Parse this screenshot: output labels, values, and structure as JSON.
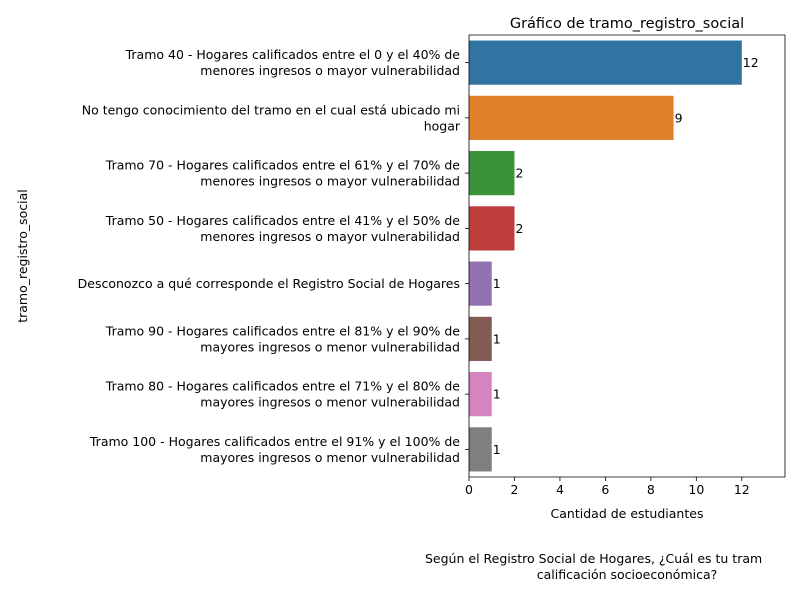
{
  "chart_data": {
    "type": "bar",
    "orientation": "horizontal",
    "title": "Gráfico de tramo_registro_social",
    "xlabel": "Cantidad de estudiantes",
    "ylabel": "tramo_registro_social",
    "footnote": [
      "Según el Registro Social de Hogares, ¿Cuál es tu tram",
      "calificación socioeconómica?"
    ],
    "xlim": [
      0,
      13.9
    ],
    "xticks": [
      0,
      2,
      4,
      6,
      8,
      10,
      12
    ],
    "grid": false,
    "categories": [
      [
        "Tramo 40 - Hogares calificados entre el 0 y el 40% de",
        "menores ingresos o mayor vulnerabilidad"
      ],
      [
        "No tengo conocimiento del tramo en el cual está ubicado mi",
        "hogar"
      ],
      [
        "Tramo 70 - Hogares calificados entre el 61% y el 70% de",
        "menores ingresos o mayor vulnerabilidad"
      ],
      [
        "Tramo 50 - Hogares calificados entre el 41% y el 50% de",
        "menores ingresos o mayor vulnerabilidad"
      ],
      [
        "Desconozco a qué corresponde el Registro Social de Hogares"
      ],
      [
        "Tramo 90 - Hogares calificados entre el 81% y el 90% de",
        "mayores ingresos o menor vulnerabilidad"
      ],
      [
        "Tramo 80 - Hogares calificados entre el 71% y el 80% de",
        "mayores ingresos o menor vulnerabilidad"
      ],
      [
        "Tramo 100 - Hogares calificados entre el 91% y el 100% de",
        "mayores ingresos o menor vulnerabilidad"
      ]
    ],
    "values": [
      12,
      9,
      2,
      2,
      1,
      1,
      1,
      1
    ],
    "data_labels": [
      "12",
      "9",
      "2",
      "2",
      "1",
      "1",
      "1",
      "1"
    ],
    "colors": [
      "#3274a1",
      "#e1812c",
      "#3a923a",
      "#c03d3e",
      "#9372b2",
      "#845b53",
      "#d684bd",
      "#7f7f7f"
    ]
  }
}
